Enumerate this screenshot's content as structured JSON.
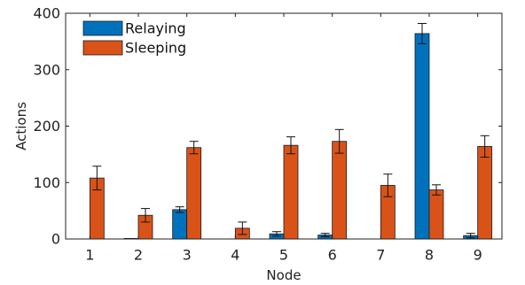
{
  "chart_data": {
    "type": "bar",
    "title": "",
    "xlabel": "Node",
    "ylabel": "Actions",
    "categories": [
      "1",
      "2",
      "3",
      "4",
      "5",
      "6",
      "7",
      "8",
      "9"
    ],
    "ylim": [
      0,
      400
    ],
    "yticks": [
      0,
      100,
      200,
      300,
      400
    ],
    "grid": false,
    "legend_position": "top-left",
    "series": [
      {
        "name": "Relaying",
        "color": "#0072bd",
        "values": [
          0,
          1,
          52,
          0,
          9,
          7,
          0,
          364,
          6
        ],
        "errors": [
          0,
          0,
          5,
          0,
          4,
          3,
          0,
          18,
          4
        ]
      },
      {
        "name": "Sleeping",
        "color": "#d95319",
        "values": [
          108,
          42,
          162,
          19,
          166,
          173,
          95,
          87,
          164
        ],
        "errors": [
          21,
          12,
          11,
          11,
          15,
          21,
          20,
          9,
          19
        ]
      }
    ]
  }
}
